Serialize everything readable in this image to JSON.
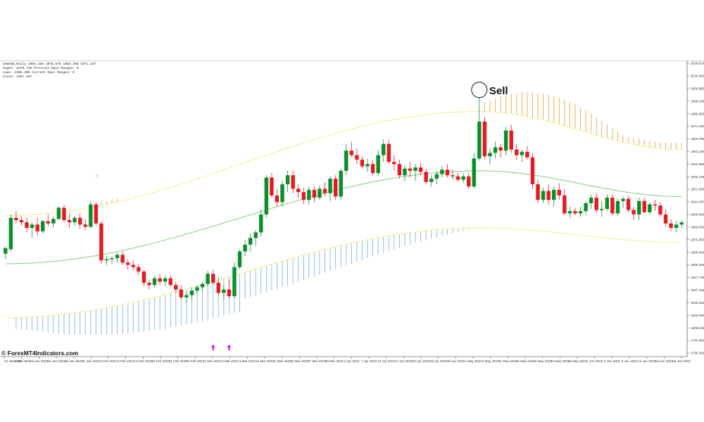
{
  "header": {
    "info_lines": [
      "XAUUSD,Daily  1964.189 1978.879 1955.306 1971.157",
      "Highs: 1976.745     Previous Days Ranges: 0",
      "Lows: 1955.306      Current Days Ranges: 0",
      "Close: 1967.497"
    ]
  },
  "watermark": "© ForexMT4Indicators.com",
  "signal": {
    "label": "Sell"
  },
  "colors": {
    "bull": "#0b8f2a",
    "bear": "#e31b23",
    "mid_band": "#7ad07a",
    "outer_band": "#f2ef8a",
    "upper_cloud": "#f0a24a",
    "lower_cloud": "#7fb6e8",
    "arrow": "#e600e6"
  },
  "chart_data": {
    "type": "candlestick",
    "instrument": "XAUUSD,Daily",
    "ylim": [
      1785.0,
      2040.0
    ],
    "y_ticks": [
      "2028.910",
      "2019.460",
      "2006.885",
      "1996.435",
      "1985.885",
      "1974.335",
      "1963.785",
      "1953.235",
      "1942.685",
      "1932.135",
      "1921.585",
      "1911.035",
      "1900.485",
      "1889.935",
      "1879.385",
      "1868.835",
      "1858.285",
      "1847.735",
      "1837.185",
      "1826.635",
      "1816.085",
      "1805.535",
      "1794.985",
      "1785.085"
    ],
    "x_tick_labels": [
      "10 Jan 2023",
      "13 Jan 2023",
      "18 Jan 2023",
      "23 Jan 2023",
      "26 Jan 2023",
      "31 Jan 2023",
      "3 Feb 2023",
      "8 Feb 2023",
      "13 Feb 2023",
      "16 Feb 2023",
      "21 Feb 2023",
      "24 Feb 2023",
      "1 Mar 2023",
      "6 Mar 2023",
      "9 Mar 2023",
      "14 Mar 2023",
      "17 Mar 2023",
      "22 Mar 2023",
      "27 Mar 2023",
      "30 Mar 2023",
      "4 Apr 2023",
      "7 Apr 2023",
      "12 Apr 2023",
      "17 Apr 2023",
      "20 Apr 2023",
      "25 Apr 2023",
      "28 Apr 2023",
      "3 May 2023",
      "8 May 2023",
      "11 May 2023",
      "16 May 2023",
      "19 May 2023",
      "24 May 2023",
      "29 May 2023",
      "1 Jun 2023",
      "6 Jun 2023",
      "9 Jun 2023",
      "14 Jun 2023",
      "19 Jun 2023",
      "22 Jun 2023"
    ],
    "candles": [
      {
        "o": 1870,
        "h": 1876,
        "l": 1865,
        "c": 1875
      },
      {
        "o": 1874,
        "h": 1905,
        "l": 1872,
        "c": 1902
      },
      {
        "o": 1902,
        "h": 1908,
        "l": 1897,
        "c": 1900
      },
      {
        "o": 1900,
        "h": 1903,
        "l": 1895,
        "c": 1898
      },
      {
        "o": 1898,
        "h": 1902,
        "l": 1889,
        "c": 1893
      },
      {
        "o": 1893,
        "h": 1898,
        "l": 1884,
        "c": 1896
      },
      {
        "o": 1896,
        "h": 1902,
        "l": 1886,
        "c": 1890
      },
      {
        "o": 1890,
        "h": 1900,
        "l": 1888,
        "c": 1899
      },
      {
        "o": 1899,
        "h": 1905,
        "l": 1895,
        "c": 1897
      },
      {
        "o": 1897,
        "h": 1903,
        "l": 1893,
        "c": 1901
      },
      {
        "o": 1901,
        "h": 1912,
        "l": 1900,
        "c": 1911
      },
      {
        "o": 1911,
        "h": 1914,
        "l": 1898,
        "c": 1900
      },
      {
        "o": 1900,
        "h": 1906,
        "l": 1893,
        "c": 1898
      },
      {
        "o": 1898,
        "h": 1904,
        "l": 1895,
        "c": 1902
      },
      {
        "o": 1902,
        "h": 1906,
        "l": 1892,
        "c": 1896
      },
      {
        "o": 1896,
        "h": 1901,
        "l": 1891,
        "c": 1894
      },
      {
        "o": 1894,
        "h": 1917,
        "l": 1893,
        "c": 1914
      },
      {
        "o": 1914,
        "h": 1916,
        "l": 1895,
        "c": 1897
      },
      {
        "o": 1897,
        "h": 1899,
        "l": 1861,
        "c": 1864
      },
      {
        "o": 1864,
        "h": 1868,
        "l": 1860,
        "c": 1865
      },
      {
        "o": 1865,
        "h": 1868,
        "l": 1861,
        "c": 1866
      },
      {
        "o": 1866,
        "h": 1871,
        "l": 1862,
        "c": 1869
      },
      {
        "o": 1869,
        "h": 1872,
        "l": 1860,
        "c": 1862
      },
      {
        "o": 1862,
        "h": 1865,
        "l": 1856,
        "c": 1860
      },
      {
        "o": 1860,
        "h": 1864,
        "l": 1855,
        "c": 1858
      },
      {
        "o": 1858,
        "h": 1861,
        "l": 1851,
        "c": 1854
      },
      {
        "o": 1854,
        "h": 1856,
        "l": 1841,
        "c": 1844
      },
      {
        "o": 1844,
        "h": 1847,
        "l": 1838,
        "c": 1842
      },
      {
        "o": 1842,
        "h": 1850,
        "l": 1840,
        "c": 1848
      },
      {
        "o": 1848,
        "h": 1852,
        "l": 1842,
        "c": 1845
      },
      {
        "o": 1845,
        "h": 1850,
        "l": 1841,
        "c": 1848
      },
      {
        "o": 1848,
        "h": 1851,
        "l": 1840,
        "c": 1842
      },
      {
        "o": 1842,
        "h": 1845,
        "l": 1835,
        "c": 1838
      },
      {
        "o": 1838,
        "h": 1842,
        "l": 1829,
        "c": 1831
      },
      {
        "o": 1831,
        "h": 1836,
        "l": 1826,
        "c": 1833
      },
      {
        "o": 1833,
        "h": 1840,
        "l": 1829,
        "c": 1837
      },
      {
        "o": 1837,
        "h": 1842,
        "l": 1834,
        "c": 1840
      },
      {
        "o": 1840,
        "h": 1845,
        "l": 1836,
        "c": 1843
      },
      {
        "o": 1843,
        "h": 1855,
        "l": 1841,
        "c": 1852
      },
      {
        "o": 1852,
        "h": 1856,
        "l": 1842,
        "c": 1844
      },
      {
        "o": 1844,
        "h": 1849,
        "l": 1832,
        "c": 1835
      },
      {
        "o": 1835,
        "h": 1842,
        "l": 1829,
        "c": 1838
      },
      {
        "o": 1838,
        "h": 1847,
        "l": 1830,
        "c": 1832
      },
      {
        "o": 1832,
        "h": 1862,
        "l": 1830,
        "c": 1858
      },
      {
        "o": 1858,
        "h": 1874,
        "l": 1856,
        "c": 1872
      },
      {
        "o": 1872,
        "h": 1882,
        "l": 1868,
        "c": 1878
      },
      {
        "o": 1878,
        "h": 1888,
        "l": 1872,
        "c": 1884
      },
      {
        "o": 1884,
        "h": 1891,
        "l": 1877,
        "c": 1889
      },
      {
        "o": 1889,
        "h": 1910,
        "l": 1885,
        "c": 1905
      },
      {
        "o": 1905,
        "h": 1940,
        "l": 1902,
        "c": 1938
      },
      {
        "o": 1938,
        "h": 1942,
        "l": 1920,
        "c": 1922
      },
      {
        "o": 1922,
        "h": 1928,
        "l": 1912,
        "c": 1916
      },
      {
        "o": 1916,
        "h": 1935,
        "l": 1912,
        "c": 1932
      },
      {
        "o": 1932,
        "h": 1944,
        "l": 1925,
        "c": 1940
      },
      {
        "o": 1940,
        "h": 1944,
        "l": 1924,
        "c": 1928
      },
      {
        "o": 1928,
        "h": 1932,
        "l": 1920,
        "c": 1925
      },
      {
        "o": 1925,
        "h": 1929,
        "l": 1914,
        "c": 1918
      },
      {
        "o": 1918,
        "h": 1930,
        "l": 1914,
        "c": 1927
      },
      {
        "o": 1927,
        "h": 1930,
        "l": 1916,
        "c": 1920
      },
      {
        "o": 1920,
        "h": 1931,
        "l": 1918,
        "c": 1928
      },
      {
        "o": 1928,
        "h": 1934,
        "l": 1921,
        "c": 1924
      },
      {
        "o": 1924,
        "h": 1939,
        "l": 1917,
        "c": 1937
      },
      {
        "o": 1937,
        "h": 1940,
        "l": 1918,
        "c": 1921
      },
      {
        "o": 1921,
        "h": 1946,
        "l": 1918,
        "c": 1944
      },
      {
        "o": 1944,
        "h": 1968,
        "l": 1940,
        "c": 1962
      },
      {
        "o": 1962,
        "h": 1970,
        "l": 1956,
        "c": 1958
      },
      {
        "o": 1958,
        "h": 1964,
        "l": 1950,
        "c": 1954
      },
      {
        "o": 1954,
        "h": 1957,
        "l": 1946,
        "c": 1948
      },
      {
        "o": 1948,
        "h": 1955,
        "l": 1943,
        "c": 1950
      },
      {
        "o": 1950,
        "h": 1953,
        "l": 1940,
        "c": 1942
      },
      {
        "o": 1942,
        "h": 1962,
        "l": 1939,
        "c": 1958
      },
      {
        "o": 1958,
        "h": 1972,
        "l": 1952,
        "c": 1968
      },
      {
        "o": 1968,
        "h": 1972,
        "l": 1950,
        "c": 1952
      },
      {
        "o": 1952,
        "h": 1958,
        "l": 1944,
        "c": 1950
      },
      {
        "o": 1950,
        "h": 1954,
        "l": 1937,
        "c": 1940
      },
      {
        "o": 1940,
        "h": 1949,
        "l": 1935,
        "c": 1946
      },
      {
        "o": 1946,
        "h": 1952,
        "l": 1938,
        "c": 1944
      },
      {
        "o": 1944,
        "h": 1950,
        "l": 1935,
        "c": 1947
      },
      {
        "o": 1947,
        "h": 1951,
        "l": 1940,
        "c": 1943
      },
      {
        "o": 1943,
        "h": 1946,
        "l": 1932,
        "c": 1934
      },
      {
        "o": 1934,
        "h": 1940,
        "l": 1930,
        "c": 1937
      },
      {
        "o": 1937,
        "h": 1944,
        "l": 1932,
        "c": 1941
      },
      {
        "o": 1941,
        "h": 1948,
        "l": 1938,
        "c": 1945
      },
      {
        "o": 1945,
        "h": 1950,
        "l": 1938,
        "c": 1940
      },
      {
        "o": 1940,
        "h": 1945,
        "l": 1936,
        "c": 1939
      },
      {
        "o": 1939,
        "h": 1942,
        "l": 1934,
        "c": 1936
      },
      {
        "o": 1936,
        "h": 1942,
        "l": 1933,
        "c": 1939
      },
      {
        "o": 1939,
        "h": 1942,
        "l": 1928,
        "c": 1930
      },
      {
        "o": 1930,
        "h": 1960,
        "l": 1928,
        "c": 1955
      },
      {
        "o": 1955,
        "h": 2010,
        "l": 1953,
        "c": 1988
      },
      {
        "o": 1988,
        "h": 1992,
        "l": 1954,
        "c": 1957
      },
      {
        "o": 1957,
        "h": 1964,
        "l": 1950,
        "c": 1960
      },
      {
        "o": 1960,
        "h": 1970,
        "l": 1955,
        "c": 1965
      },
      {
        "o": 1965,
        "h": 1968,
        "l": 1956,
        "c": 1962
      },
      {
        "o": 1962,
        "h": 1983,
        "l": 1958,
        "c": 1980
      },
      {
        "o": 1980,
        "h": 1985,
        "l": 1960,
        "c": 1963
      },
      {
        "o": 1963,
        "h": 1968,
        "l": 1954,
        "c": 1958
      },
      {
        "o": 1958,
        "h": 1963,
        "l": 1952,
        "c": 1961
      },
      {
        "o": 1961,
        "h": 1966,
        "l": 1954,
        "c": 1956
      },
      {
        "o": 1956,
        "h": 1960,
        "l": 1928,
        "c": 1932
      },
      {
        "o": 1932,
        "h": 1936,
        "l": 1915,
        "c": 1918
      },
      {
        "o": 1918,
        "h": 1929,
        "l": 1915,
        "c": 1926
      },
      {
        "o": 1926,
        "h": 1932,
        "l": 1914,
        "c": 1918
      },
      {
        "o": 1918,
        "h": 1930,
        "l": 1912,
        "c": 1927
      },
      {
        "o": 1927,
        "h": 1933,
        "l": 1918,
        "c": 1922
      },
      {
        "o": 1922,
        "h": 1928,
        "l": 1904,
        "c": 1906
      },
      {
        "o": 1906,
        "h": 1912,
        "l": 1902,
        "c": 1908
      },
      {
        "o": 1908,
        "h": 1911,
        "l": 1904,
        "c": 1906
      },
      {
        "o": 1906,
        "h": 1912,
        "l": 1903,
        "c": 1908
      },
      {
        "o": 1908,
        "h": 1917,
        "l": 1905,
        "c": 1915
      },
      {
        "o": 1915,
        "h": 1923,
        "l": 1910,
        "c": 1920
      },
      {
        "o": 1920,
        "h": 1924,
        "l": 1906,
        "c": 1909
      },
      {
        "o": 1909,
        "h": 1917,
        "l": 1903,
        "c": 1910
      },
      {
        "o": 1910,
        "h": 1923,
        "l": 1908,
        "c": 1920
      },
      {
        "o": 1920,
        "h": 1923,
        "l": 1904,
        "c": 1906
      },
      {
        "o": 1906,
        "h": 1919,
        "l": 1904,
        "c": 1917
      },
      {
        "o": 1917,
        "h": 1921,
        "l": 1911,
        "c": 1919
      },
      {
        "o": 1919,
        "h": 1922,
        "l": 1907,
        "c": 1909
      },
      {
        "o": 1909,
        "h": 1912,
        "l": 1900,
        "c": 1905
      },
      {
        "o": 1905,
        "h": 1920,
        "l": 1900,
        "c": 1917
      },
      {
        "o": 1917,
        "h": 1920,
        "l": 1906,
        "c": 1907
      },
      {
        "o": 1907,
        "h": 1916,
        "l": 1905,
        "c": 1914
      },
      {
        "o": 1914,
        "h": 1918,
        "l": 1908,
        "c": 1913
      },
      {
        "o": 1913,
        "h": 1916,
        "l": 1903,
        "c": 1905
      },
      {
        "o": 1905,
        "h": 1910,
        "l": 1894,
        "c": 1897
      },
      {
        "o": 1897,
        "h": 1901,
        "l": 1890,
        "c": 1893
      },
      {
        "o": 1893,
        "h": 1899,
        "l": 1889,
        "c": 1896
      },
      {
        "o": 1896,
        "h": 1900,
        "l": 1893,
        "c": 1898
      }
    ],
    "sell_signal_index": 89,
    "buy_arrow_indices": [
      39,
      42
    ],
    "mid_band": {
      "start": 1861.0,
      "peak": 1944.0,
      "end": 1921.0
    },
    "upper_band": {
      "start": 1904.0,
      "peak": 1997.0,
      "end": 1963.0
    },
    "lower_band": {
      "start": 1813.0,
      "peak": 1893.0,
      "end": 1880.0
    }
  }
}
